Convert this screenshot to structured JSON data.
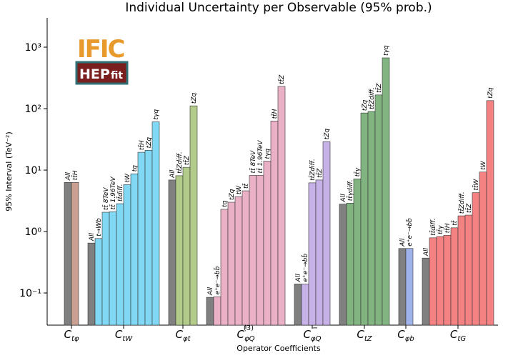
{
  "chart_data": {
    "type": "bar",
    "title": "Individual Uncertainty per Observable (95% prob.)",
    "xlabel": "Operator Coefficients",
    "ylabel": "95% Interval (TeV⁻²)",
    "log_scale": true,
    "ylim": [
      0.03,
      3000
    ],
    "yticks": [
      {
        "value": 0.1,
        "label": "10⁻¹"
      },
      {
        "value": 1,
        "label": "10⁰"
      },
      {
        "value": 10,
        "label": "10¹"
      },
      {
        "value": 100,
        "label": "10²"
      },
      {
        "value": 1000,
        "label": "10³"
      }
    ],
    "all_color": "#808080",
    "logos": {
      "ific": "IFIC",
      "hep": "HEP",
      "fit": "fit"
    },
    "groups": [
      {
        "symbol": "C",
        "sub": "tφ",
        "color": "#c9a092",
        "bars": [
          {
            "label": "All",
            "value": 6.3
          },
          {
            "label": "tt̄H",
            "value": 6.3
          }
        ]
      },
      {
        "symbol": "C",
        "sub": "tW",
        "color": "#80d8f5",
        "bars": [
          {
            "label": "All",
            "value": 0.65
          },
          {
            "label": "t→Wb",
            "value": 0.77
          },
          {
            "label": "tt̄ 8TeV",
            "value": 2.06
          },
          {
            "label": "tt̄ 1.96TeV",
            "value": 2.1
          },
          {
            "label": "tt̄diff.",
            "value": 2.84
          },
          {
            "label": "tW",
            "value": 5.8
          },
          {
            "label": "tq",
            "value": 8.7
          },
          {
            "label": "tt̄H",
            "value": 19.5
          },
          {
            "label": "tZq",
            "value": 21
          },
          {
            "label": "tγq",
            "value": 61
          }
        ]
      },
      {
        "symbol": "C",
        "sub": "φt",
        "color": "#b3cb8a",
        "bars": [
          {
            "label": "All",
            "value": 6.9
          },
          {
            "label": "tt̄Zdiff.",
            "value": 8.1
          },
          {
            "label": "tt̄Z",
            "value": 11.1
          },
          {
            "label": "tZq",
            "value": 111
          }
        ]
      },
      {
        "symbol": "C",
        "sub": "φQ",
        "sup": "(3)",
        "color": "#eab0c6",
        "bars": [
          {
            "label": "All",
            "value": 0.085
          },
          {
            "label": "e⁺e⁻→bb̄",
            "value": 0.087
          },
          {
            "label": "tq",
            "value": 2.3
          },
          {
            "label": "tZq",
            "value": 3.0
          },
          {
            "label": "tW",
            "value": 3.7
          },
          {
            "label": "tt̄",
            "value": 4.6
          },
          {
            "label": "tt̄ 8TeV",
            "value": 8.2
          },
          {
            "label": "tt̄ 1.96TeV",
            "value": 8.2
          },
          {
            "label": "tγq",
            "value": 14
          },
          {
            "label": "tt̄H",
            "value": 63
          },
          {
            "label": "tt̄Z",
            "value": 230
          }
        ]
      },
      {
        "symbol": "C",
        "sub": "φQ",
        "sup": "−",
        "color": "#c6b2e6",
        "bars": [
          {
            "label": "All",
            "value": 0.14
          },
          {
            "label": "e⁺e⁻→bb̄",
            "value": 0.14
          },
          {
            "label": "tt̄Zdiff.",
            "value": 6.2
          },
          {
            "label": "tt̄Z",
            "value": 6.9
          },
          {
            "label": "tZq",
            "value": 29
          }
        ]
      },
      {
        "symbol": "C",
        "sub": "tZ",
        "color": "#82b482",
        "bars": [
          {
            "label": "All",
            "value": 2.8
          },
          {
            "label": "tt̄γdiff.",
            "value": 2.9
          },
          {
            "label": "tt̄γ",
            "value": 7.2
          },
          {
            "label": "tZq",
            "value": 85
          },
          {
            "label": "tt̄Zdiff.",
            "value": 90
          },
          {
            "label": "tt̄Z",
            "value": 167
          },
          {
            "label": "tγq",
            "value": 670
          }
        ]
      },
      {
        "symbol": "C",
        "sub": "φb",
        "color": "#a0b2ea",
        "bars": [
          {
            "label": "All",
            "value": 0.53
          },
          {
            "label": "e⁺e⁻→bb̄",
            "value": 0.53
          }
        ]
      },
      {
        "symbol": "C",
        "sub": "tG",
        "color": "#f58282",
        "bars": [
          {
            "label": "All",
            "value": 0.37
          },
          {
            "label": "tt̄diff.",
            "value": 0.79
          },
          {
            "label": "tt̄γ",
            "value": 0.83
          },
          {
            "label": "tt̄H",
            "value": 0.87
          },
          {
            "label": "tt̄",
            "value": 1.15
          },
          {
            "label": "tt̄Zdiff.",
            "value": 1.8
          },
          {
            "label": "tt̄Z",
            "value": 1.85
          },
          {
            "label": "tt̄W",
            "value": 4.3
          },
          {
            "label": "tW",
            "value": 9.3
          },
          {
            "label": "tZq",
            "value": 135
          }
        ]
      }
    ]
  }
}
